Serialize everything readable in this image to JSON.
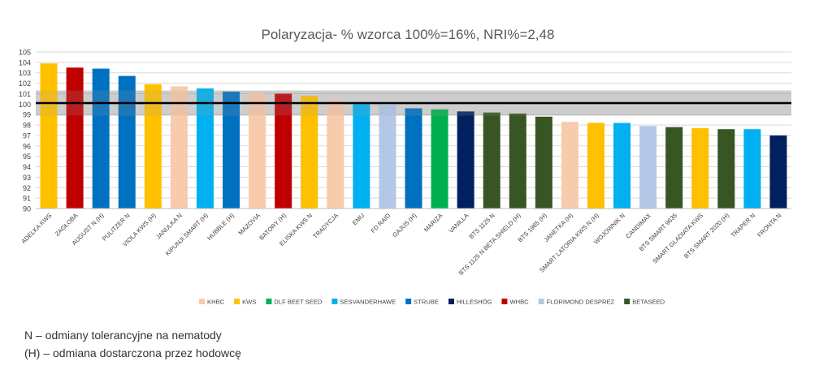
{
  "chart_data": {
    "type": "bar",
    "title": "Polaryzacja- % wzorca 100%=16%, NRI%=2,48",
    "xlabel": "",
    "ylabel": "",
    "ylim": [
      90,
      105
    ],
    "yticks": [
      90,
      91,
      92,
      93,
      94,
      95,
      96,
      97,
      98,
      99,
      100,
      101,
      102,
      103,
      104,
      105
    ],
    "grid": true,
    "reference_line": 100.1,
    "nri_band": [
      98.9,
      101.3
    ],
    "categories": [
      "ADELKA KWS",
      "ZAGŁOBA",
      "AUGUST N (H)",
      "PULITZER N",
      "VIOLA KWS (H)",
      "JANULKA N",
      "KIPUNJI SMART (H)",
      "HUBBLE (H)",
      "MAZOVIA",
      "BATORY (H)",
      "ELISKA KWS N",
      "TRADYCJA",
      "EMU",
      "FD RAID",
      "GAJUS (H)",
      "MARIZA",
      "VANILLA",
      "BTS 1125 N",
      "BTS 1125 N BETA SHIELD (H)",
      "BTS 1965 (H)",
      "JANETKA (H)",
      "SMART LATORIA KWS N (H)",
      "WOJOWNIK N",
      "CANDIMAX",
      "BTS SMART 9635",
      "SMART GLADIATA KWS",
      "BTS SMART 2020 (H)",
      "TRAPER N",
      "FRONTA N"
    ],
    "values": [
      103.9,
      103.5,
      103.4,
      102.7,
      101.9,
      101.7,
      101.5,
      101.2,
      101.1,
      101.0,
      100.8,
      100.4,
      100.1,
      100.0,
      99.6,
      99.5,
      99.3,
      99.2,
      99.1,
      98.8,
      98.3,
      98.2,
      98.2,
      97.9,
      97.8,
      97.7,
      97.6,
      97.6,
      97.0
    ],
    "bar_breeders": [
      "KWS",
      "WHBC",
      "STRUBE",
      "STRUBE",
      "KWS",
      "KHBC",
      "SESVANDERHAWE",
      "STRUBE",
      "KHBC",
      "WHBC",
      "KWS",
      "KHBC",
      "SESVANDERHAWE",
      "FLORIMOND DESPREZ",
      "STRUBE",
      "DLF BEET SEED",
      "HILLESHÖG",
      "BETASEED",
      "BETASEED",
      "BETASEED",
      "KHBC",
      "KWS",
      "SESVANDERHAWE",
      "FLORIMOND DESPREZ",
      "BETASEED",
      "KWS",
      "BETASEED",
      "SESVANDERHAWE",
      "HILLESHÖG"
    ],
    "legend_position": "bottom",
    "legend": [
      {
        "name": "KHBC",
        "color": "#f8cbad"
      },
      {
        "name": "KWS",
        "color": "#ffc000"
      },
      {
        "name": "DLF BEET SEED",
        "color": "#00b050"
      },
      {
        "name": "SESVANDERHAWE",
        "color": "#00b0f0"
      },
      {
        "name": "STRUBE",
        "color": "#0070c0"
      },
      {
        "name": "HILLESHÖG",
        "color": "#002060"
      },
      {
        "name": "WHBC",
        "color": "#c00000"
      },
      {
        "name": "FLORIMOND DESPREZ",
        "color": "#b4c7e7"
      },
      {
        "name": "BETASEED",
        "color": "#375623"
      }
    ]
  },
  "notes": {
    "line1": "N – odmiany tolerancyjne na nematody",
    "line2": "(H) – odmiana dostarczona przez hodowcę"
  }
}
